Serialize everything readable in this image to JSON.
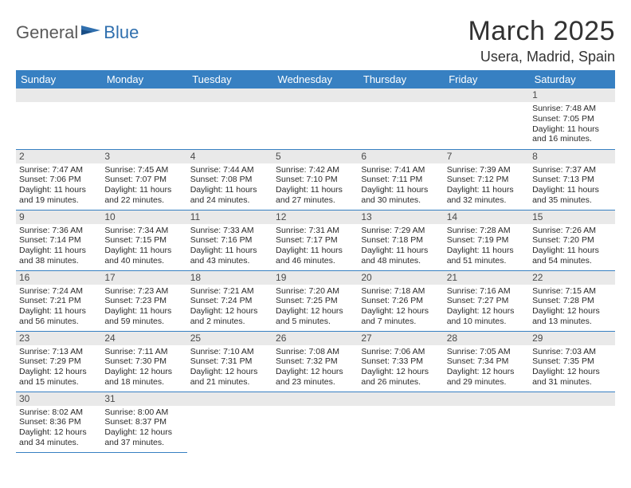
{
  "logo": {
    "text1": "General",
    "text2": "Blue"
  },
  "title": "March 2025",
  "location": "Usera, Madrid, Spain",
  "colors": {
    "header_bg": "#3780c2",
    "header_fg": "#ffffff",
    "daynum_bg": "#e9e9e9",
    "border": "#3780c2",
    "text": "#2a2a2a",
    "logo_gray": "#5a5a5a",
    "logo_blue": "#2f6fae"
  },
  "typography": {
    "title_fontsize": 34,
    "location_fontsize": 18,
    "weekday_fontsize": 13,
    "cell_fontsize": 10.5
  },
  "weekdays": [
    "Sunday",
    "Monday",
    "Tuesday",
    "Wednesday",
    "Thursday",
    "Friday",
    "Saturday"
  ],
  "weeks": [
    [
      {
        "blank": true
      },
      {
        "blank": true
      },
      {
        "blank": true
      },
      {
        "blank": true
      },
      {
        "blank": true
      },
      {
        "blank": true
      },
      {
        "day": "1",
        "sunrise": "Sunrise: 7:48 AM",
        "sunset": "Sunset: 7:05 PM",
        "daylight": "Daylight: 11 hours and 16 minutes."
      }
    ],
    [
      {
        "day": "2",
        "sunrise": "Sunrise: 7:47 AM",
        "sunset": "Sunset: 7:06 PM",
        "daylight": "Daylight: 11 hours and 19 minutes."
      },
      {
        "day": "3",
        "sunrise": "Sunrise: 7:45 AM",
        "sunset": "Sunset: 7:07 PM",
        "daylight": "Daylight: 11 hours and 22 minutes."
      },
      {
        "day": "4",
        "sunrise": "Sunrise: 7:44 AM",
        "sunset": "Sunset: 7:08 PM",
        "daylight": "Daylight: 11 hours and 24 minutes."
      },
      {
        "day": "5",
        "sunrise": "Sunrise: 7:42 AM",
        "sunset": "Sunset: 7:10 PM",
        "daylight": "Daylight: 11 hours and 27 minutes."
      },
      {
        "day": "6",
        "sunrise": "Sunrise: 7:41 AM",
        "sunset": "Sunset: 7:11 PM",
        "daylight": "Daylight: 11 hours and 30 minutes."
      },
      {
        "day": "7",
        "sunrise": "Sunrise: 7:39 AM",
        "sunset": "Sunset: 7:12 PM",
        "daylight": "Daylight: 11 hours and 32 minutes."
      },
      {
        "day": "8",
        "sunrise": "Sunrise: 7:37 AM",
        "sunset": "Sunset: 7:13 PM",
        "daylight": "Daylight: 11 hours and 35 minutes."
      }
    ],
    [
      {
        "day": "9",
        "sunrise": "Sunrise: 7:36 AM",
        "sunset": "Sunset: 7:14 PM",
        "daylight": "Daylight: 11 hours and 38 minutes."
      },
      {
        "day": "10",
        "sunrise": "Sunrise: 7:34 AM",
        "sunset": "Sunset: 7:15 PM",
        "daylight": "Daylight: 11 hours and 40 minutes."
      },
      {
        "day": "11",
        "sunrise": "Sunrise: 7:33 AM",
        "sunset": "Sunset: 7:16 PM",
        "daylight": "Daylight: 11 hours and 43 minutes."
      },
      {
        "day": "12",
        "sunrise": "Sunrise: 7:31 AM",
        "sunset": "Sunset: 7:17 PM",
        "daylight": "Daylight: 11 hours and 46 minutes."
      },
      {
        "day": "13",
        "sunrise": "Sunrise: 7:29 AM",
        "sunset": "Sunset: 7:18 PM",
        "daylight": "Daylight: 11 hours and 48 minutes."
      },
      {
        "day": "14",
        "sunrise": "Sunrise: 7:28 AM",
        "sunset": "Sunset: 7:19 PM",
        "daylight": "Daylight: 11 hours and 51 minutes."
      },
      {
        "day": "15",
        "sunrise": "Sunrise: 7:26 AM",
        "sunset": "Sunset: 7:20 PM",
        "daylight": "Daylight: 11 hours and 54 minutes."
      }
    ],
    [
      {
        "day": "16",
        "sunrise": "Sunrise: 7:24 AM",
        "sunset": "Sunset: 7:21 PM",
        "daylight": "Daylight: 11 hours and 56 minutes."
      },
      {
        "day": "17",
        "sunrise": "Sunrise: 7:23 AM",
        "sunset": "Sunset: 7:23 PM",
        "daylight": "Daylight: 11 hours and 59 minutes."
      },
      {
        "day": "18",
        "sunrise": "Sunrise: 7:21 AM",
        "sunset": "Sunset: 7:24 PM",
        "daylight": "Daylight: 12 hours and 2 minutes."
      },
      {
        "day": "19",
        "sunrise": "Sunrise: 7:20 AM",
        "sunset": "Sunset: 7:25 PM",
        "daylight": "Daylight: 12 hours and 5 minutes."
      },
      {
        "day": "20",
        "sunrise": "Sunrise: 7:18 AM",
        "sunset": "Sunset: 7:26 PM",
        "daylight": "Daylight: 12 hours and 7 minutes."
      },
      {
        "day": "21",
        "sunrise": "Sunrise: 7:16 AM",
        "sunset": "Sunset: 7:27 PM",
        "daylight": "Daylight: 12 hours and 10 minutes."
      },
      {
        "day": "22",
        "sunrise": "Sunrise: 7:15 AM",
        "sunset": "Sunset: 7:28 PM",
        "daylight": "Daylight: 12 hours and 13 minutes."
      }
    ],
    [
      {
        "day": "23",
        "sunrise": "Sunrise: 7:13 AM",
        "sunset": "Sunset: 7:29 PM",
        "daylight": "Daylight: 12 hours and 15 minutes."
      },
      {
        "day": "24",
        "sunrise": "Sunrise: 7:11 AM",
        "sunset": "Sunset: 7:30 PM",
        "daylight": "Daylight: 12 hours and 18 minutes."
      },
      {
        "day": "25",
        "sunrise": "Sunrise: 7:10 AM",
        "sunset": "Sunset: 7:31 PM",
        "daylight": "Daylight: 12 hours and 21 minutes."
      },
      {
        "day": "26",
        "sunrise": "Sunrise: 7:08 AM",
        "sunset": "Sunset: 7:32 PM",
        "daylight": "Daylight: 12 hours and 23 minutes."
      },
      {
        "day": "27",
        "sunrise": "Sunrise: 7:06 AM",
        "sunset": "Sunset: 7:33 PM",
        "daylight": "Daylight: 12 hours and 26 minutes."
      },
      {
        "day": "28",
        "sunrise": "Sunrise: 7:05 AM",
        "sunset": "Sunset: 7:34 PM",
        "daylight": "Daylight: 12 hours and 29 minutes."
      },
      {
        "day": "29",
        "sunrise": "Sunrise: 7:03 AM",
        "sunset": "Sunset: 7:35 PM",
        "daylight": "Daylight: 12 hours and 31 minutes."
      }
    ],
    [
      {
        "day": "30",
        "sunrise": "Sunrise: 8:02 AM",
        "sunset": "Sunset: 8:36 PM",
        "daylight": "Daylight: 12 hours and 34 minutes."
      },
      {
        "day": "31",
        "sunrise": "Sunrise: 8:00 AM",
        "sunset": "Sunset: 8:37 PM",
        "daylight": "Daylight: 12 hours and 37 minutes."
      },
      {
        "blank": true
      },
      {
        "blank": true
      },
      {
        "blank": true
      },
      {
        "blank": true
      },
      {
        "blank": true
      }
    ]
  ]
}
